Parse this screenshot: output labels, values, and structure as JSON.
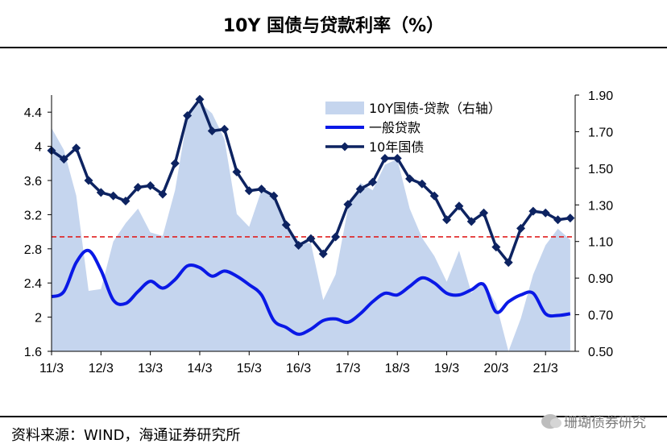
{
  "header": {
    "title": "10Y 国债与贷款利率（%）"
  },
  "footer": {
    "source": "资料来源：WIND，海通证券研究所",
    "watermark": "珊瑚债券研究"
  },
  "colors": {
    "spread_fill": "#c5d5ee",
    "loan_line": "#0a19e6",
    "bond_line": "#0d2361",
    "ref_line": "#e02020",
    "axis": "#000000"
  },
  "chart_data": {
    "type": "line",
    "title": "10Y 国债与贷款利率（%）",
    "x_tick_labels": [
      "11/3",
      "12/3",
      "13/3",
      "14/3",
      "15/3",
      "16/3",
      "17/3",
      "18/3",
      "19/3",
      "20/3",
      "21/3"
    ],
    "x_range": [
      2011.0,
      2021.6
    ],
    "y_left": {
      "range": [
        1.6,
        4.6
      ],
      "ticks": [
        1.6,
        2,
        2.4,
        2.8,
        3.2,
        3.6,
        4,
        4.4
      ],
      "tick_labels": [
        "1.6",
        "2",
        "2.4",
        "2.8",
        "3.2",
        "3.6",
        "4",
        "4.4"
      ]
    },
    "y_right": {
      "range": [
        0.5,
        1.9
      ],
      "ticks": [
        0.5,
        0.7,
        0.9,
        1.1,
        1.3,
        1.5,
        1.7,
        1.9
      ],
      "tick_labels": [
        "0.50",
        "0.70",
        "0.90",
        "1.10",
        "1.30",
        "1.50",
        "1.70",
        "1.90"
      ]
    },
    "reference_line": {
      "axis": "left",
      "value": 2.94,
      "style": "dashed",
      "color": "#e02020"
    },
    "legend": {
      "placement": "top-right",
      "entries": [
        "10Y国债-贷款（右轴）",
        "一般贷款",
        "10年国债"
      ]
    },
    "series": [
      {
        "name": "10Y国债-贷款（右轴）",
        "kind": "area",
        "axis": "right",
        "x": [
          2011.0,
          2011.25,
          2011.5,
          2011.75,
          2012.0,
          2012.25,
          2012.5,
          2012.75,
          2013.0,
          2013.25,
          2013.5,
          2013.75,
          2014.0,
          2014.25,
          2014.5,
          2014.75,
          2015.0,
          2015.25,
          2015.5,
          2015.75,
          2016.0,
          2016.25,
          2016.5,
          2016.75,
          2017.0,
          2017.25,
          2017.5,
          2017.75,
          2018.0,
          2018.25,
          2018.5,
          2018.75,
          2019.0,
          2019.25,
          2019.5,
          2019.75,
          2020.0,
          2020.25,
          2020.5,
          2020.75,
          2021.0,
          2021.25,
          2021.5
        ],
        "values": [
          1.72,
          1.6,
          1.35,
          0.83,
          0.84,
          1.1,
          1.2,
          1.28,
          1.15,
          1.13,
          1.38,
          1.78,
          1.86,
          1.8,
          1.66,
          1.25,
          1.18,
          1.38,
          1.34,
          1.2,
          1.1,
          1.09,
          0.78,
          0.92,
          1.28,
          1.42,
          1.38,
          1.52,
          1.55,
          1.28,
          1.12,
          1.02,
          0.88,
          1.05,
          0.82,
          0.88,
          0.76,
          0.5,
          0.68,
          0.92,
          1.08,
          1.17,
          1.11
        ]
      },
      {
        "name": "一般贷款",
        "kind": "line",
        "axis": "left",
        "x": [
          2011.0,
          2011.25,
          2011.5,
          2011.75,
          2012.0,
          2012.25,
          2012.5,
          2012.75,
          2013.0,
          2013.25,
          2013.5,
          2013.75,
          2014.0,
          2014.25,
          2014.5,
          2014.75,
          2015.0,
          2015.25,
          2015.5,
          2015.75,
          2016.0,
          2016.25,
          2016.5,
          2016.75,
          2017.0,
          2017.25,
          2017.5,
          2017.75,
          2018.0,
          2018.25,
          2018.5,
          2018.75,
          2019.0,
          2019.25,
          2019.5,
          2019.75,
          2020.0,
          2020.25,
          2020.5,
          2020.75,
          2021.0,
          2021.25,
          2021.5
        ],
        "values": [
          2.24,
          2.3,
          2.64,
          2.78,
          2.55,
          2.2,
          2.16,
          2.3,
          2.42,
          2.34,
          2.44,
          2.6,
          2.58,
          2.48,
          2.54,
          2.48,
          2.38,
          2.26,
          1.96,
          1.88,
          1.8,
          1.86,
          1.96,
          1.98,
          1.94,
          2.04,
          2.18,
          2.28,
          2.26,
          2.36,
          2.46,
          2.4,
          2.28,
          2.26,
          2.32,
          2.38,
          2.06,
          2.18,
          2.26,
          2.28,
          2.04,
          2.02,
          2.04
        ]
      },
      {
        "name": "10年国债",
        "kind": "line",
        "axis": "left",
        "x": [
          2011.0,
          2011.25,
          2011.5,
          2011.75,
          2012.0,
          2012.25,
          2012.5,
          2012.75,
          2013.0,
          2013.25,
          2013.5,
          2013.75,
          2014.0,
          2014.25,
          2014.5,
          2014.75,
          2015.0,
          2015.25,
          2015.5,
          2015.75,
          2016.0,
          2016.25,
          2016.5,
          2016.75,
          2017.0,
          2017.25,
          2017.5,
          2017.75,
          2018.0,
          2018.25,
          2018.5,
          2018.75,
          2019.0,
          2019.25,
          2019.5,
          2019.75,
          2020.0,
          2020.25,
          2020.5,
          2020.75,
          2021.0,
          2021.25,
          2021.5
        ],
        "values": [
          3.95,
          3.85,
          3.98,
          3.6,
          3.46,
          3.42,
          3.36,
          3.52,
          3.54,
          3.44,
          3.8,
          4.36,
          4.55,
          4.18,
          4.2,
          3.7,
          3.48,
          3.5,
          3.42,
          3.08,
          2.84,
          2.92,
          2.74,
          2.94,
          3.32,
          3.5,
          3.58,
          3.86,
          3.86,
          3.62,
          3.56,
          3.42,
          3.14,
          3.3,
          3.12,
          3.22,
          2.82,
          2.64,
          3.04,
          3.24,
          3.22,
          3.14,
          3.16
        ]
      }
    ]
  }
}
